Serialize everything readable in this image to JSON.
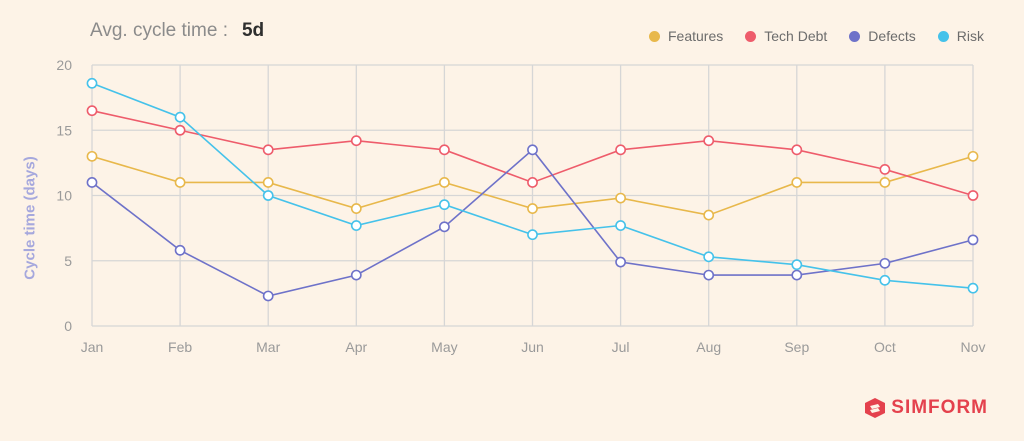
{
  "header": {
    "avg_label": "Avg. cycle time :",
    "avg_value": "5d"
  },
  "brand": {
    "name": "SIMFORM",
    "icon": "simform-logo-icon",
    "color": "#e4414d"
  },
  "chart_data": {
    "type": "line",
    "categories": [
      "Jan",
      "Feb",
      "Mar",
      "Apr",
      "May",
      "Jun",
      "Jul",
      "Aug",
      "Sep",
      "Oct",
      "Nov"
    ],
    "ylabel": "Cycle time (days)",
    "ylim": [
      0,
      20
    ],
    "yticks": [
      0,
      5,
      10,
      15,
      20
    ],
    "grid": true,
    "legend_position": "top-right",
    "series": [
      {
        "name": "Features",
        "color": "#e8b84b",
        "values": [
          13,
          11,
          11,
          9,
          11,
          9,
          9.8,
          8.5,
          11,
          11,
          13
        ]
      },
      {
        "name": "Tech Debt",
        "color": "#ee5c6b",
        "values": [
          16.5,
          15,
          13.5,
          14.2,
          13.5,
          11,
          13.5,
          14.2,
          13.5,
          12,
          10
        ]
      },
      {
        "name": "Defects",
        "color": "#6e72c9",
        "values": [
          11,
          5.8,
          2.3,
          3.9,
          7.6,
          13.5,
          4.9,
          3.9,
          3.9,
          4.8,
          6.6
        ]
      },
      {
        "name": "Risk",
        "color": "#45c2ea",
        "values": [
          18.6,
          16,
          10,
          7.7,
          9.3,
          7,
          7.7,
          5.3,
          4.7,
          3.5,
          2.9
        ]
      }
    ]
  }
}
